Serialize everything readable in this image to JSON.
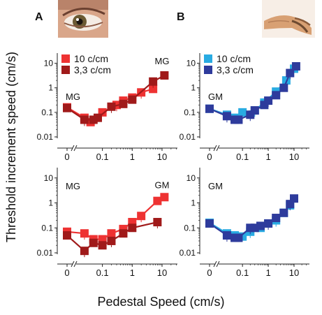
{
  "figure": {
    "ylabel": "Threshold increment speed (cm/s)",
    "xlabel": "Pedestal Speed (cm/s)",
    "panels": [
      {
        "letter": "A",
        "image_icon": "eye-photo"
      },
      {
        "letter": "B",
        "image_icon": "hand-photo"
      }
    ]
  },
  "chart_data": [
    {
      "type": "line",
      "panel": "A-top",
      "xscale": "log with zero break",
      "yscale": "log",
      "xticks": [
        "0",
        "0.1",
        "1",
        "10"
      ],
      "yticks": [
        "0.01",
        "0.1",
        "1",
        "10"
      ],
      "ylim": [
        0.01,
        20
      ],
      "annotations": [
        {
          "text": "MG",
          "x": 0,
          "y": 0.42
        },
        {
          "text": "MG",
          "x": 10,
          "y": 12
        }
      ],
      "legend": {
        "placement": "top-left"
      },
      "series": [
        {
          "name": "10 c/cm",
          "color": "#ee3232",
          "points": [
            [
              0,
              0.16
            ],
            [
              0.025,
              0.06
            ],
            [
              0.04,
              0.04
            ],
            [
              0.1,
              0.1
            ],
            [
              0.3,
              0.2
            ],
            [
              0.5,
              0.3
            ],
            [
              1,
              0.4
            ],
            [
              2,
              0.65
            ],
            [
              5,
              0.9
            ]
          ]
        },
        {
          "name": "3,3 c/cm",
          "color": "#a01a1a",
          "points": [
            [
              0,
              0.15
            ],
            [
              0.025,
              0.05
            ],
            [
              0.05,
              0.05
            ],
            [
              0.07,
              0.06
            ],
            [
              0.2,
              0.17
            ],
            [
              0.5,
              0.22
            ],
            [
              1,
              0.33
            ],
            [
              5,
              1.8
            ],
            [
              12,
              3.2
            ]
          ]
        }
      ]
    },
    {
      "type": "line",
      "panel": "B-top",
      "xscale": "log with zero break",
      "yscale": "log",
      "xticks": [
        "0",
        "0.1",
        "1",
        "10"
      ],
      "yticks": [
        "0.01",
        "0.1",
        "1",
        "10"
      ],
      "ylim": [
        0.01,
        20
      ],
      "annotations": [
        {
          "text": "GM",
          "x": 0,
          "y": 0.42
        }
      ],
      "legend": {
        "placement": "top-left"
      },
      "series": [
        {
          "name": "10 c/cm",
          "color": "#29abe2",
          "points": [
            [
              0,
              0.14
            ],
            [
              0.025,
              0.08
            ],
            [
              0.05,
              0.06
            ],
            [
              0.1,
              0.1
            ],
            [
              0.3,
              0.12
            ],
            [
              0.7,
              0.25
            ],
            [
              2,
              0.7
            ],
            [
              5,
              2
            ],
            [
              10,
              6
            ]
          ]
        },
        {
          "name": "3,3 c/cm",
          "color": "#2e3b9c",
          "points": [
            [
              0,
              0.14
            ],
            [
              0.025,
              0.07
            ],
            [
              0.05,
              0.05
            ],
            [
              0.07,
              0.05
            ],
            [
              0.2,
              0.08
            ],
            [
              0.3,
              0.12
            ],
            [
              0.7,
              0.2
            ],
            [
              1,
              0.3
            ],
            [
              2,
              0.5
            ],
            [
              4,
              1
            ],
            [
              7,
              4
            ],
            [
              12,
              7.5
            ]
          ]
        }
      ]
    },
    {
      "type": "line",
      "panel": "A-bottom",
      "xscale": "log with zero break",
      "yscale": "log",
      "xticks": [
        "0",
        "0.1",
        "1",
        "10"
      ],
      "yticks": [
        "0.01",
        "0.1",
        "1",
        "10"
      ],
      "ylim": [
        0.01,
        20
      ],
      "annotations": [
        {
          "text": "MG",
          "x": 0,
          "y": 4.5
        },
        {
          "text": "GM",
          "x": 10,
          "y": 5
        }
      ],
      "series": [
        {
          "name": "10 c/cm",
          "color": "#ee3232",
          "points": [
            [
              0,
              0.07
            ],
            [
              0.025,
              0.06
            ],
            [
              0.05,
              0.035
            ],
            [
              0.1,
              0.035
            ],
            [
              0.2,
              0.06
            ],
            [
              0.5,
              0.09
            ],
            [
              1,
              0.17
            ],
            [
              2,
              0.3
            ],
            [
              7,
              1.2
            ],
            [
              12,
              1.7
            ]
          ]
        },
        {
          "name": "3,3 c/cm",
          "color": "#a01a1a",
          "points": [
            [
              0,
              0.05
            ],
            [
              0.025,
              0.012
            ],
            [
              0.05,
              0.025
            ],
            [
              0.1,
              0.02
            ],
            [
              0.2,
              0.03
            ],
            [
              0.5,
              0.06
            ],
            [
              1,
              0.1
            ],
            [
              7,
              0.17
            ]
          ]
        }
      ]
    },
    {
      "type": "line",
      "panel": "B-bottom",
      "xscale": "log with zero break",
      "yscale": "log",
      "xticks": [
        "0",
        "0.1",
        "1",
        "10"
      ],
      "yticks": [
        "0.01",
        "0.1",
        "1",
        "10"
      ],
      "ylim": [
        0.01,
        20
      ],
      "annotations": [
        {
          "text": "GM",
          "x": 0,
          "y": 4.5
        }
      ],
      "series": [
        {
          "name": "10 c/cm",
          "color": "#29abe2",
          "points": [
            [
              0,
              0.16
            ],
            [
              0.025,
              0.06
            ],
            [
              0.05,
              0.05
            ],
            [
              0.1,
              0.045
            ],
            [
              0.2,
              0.07
            ],
            [
              0.5,
              0.1
            ],
            [
              1,
              0.15
            ],
            [
              2,
              0.2
            ],
            [
              4,
              0.4
            ],
            [
              7,
              0.8
            ]
          ]
        },
        {
          "name": "3,3 c/cm",
          "color": "#2e3b9c",
          "points": [
            [
              0,
              0.15
            ],
            [
              0.025,
              0.05
            ],
            [
              0.05,
              0.04
            ],
            [
              0.07,
              0.04
            ],
            [
              0.2,
              0.1
            ],
            [
              0.3,
              0.1
            ],
            [
              0.5,
              0.12
            ],
            [
              1,
              0.15
            ],
            [
              2,
              0.25
            ],
            [
              4,
              0.4
            ],
            [
              7,
              0.9
            ],
            [
              10,
              1.5
            ]
          ]
        }
      ]
    }
  ]
}
